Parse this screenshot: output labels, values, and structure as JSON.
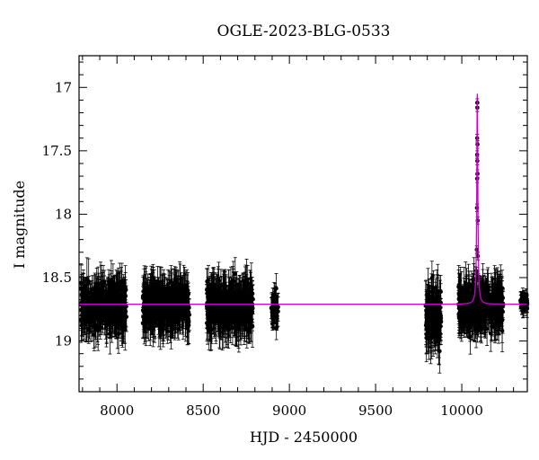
{
  "chart_data": {
    "type": "scatter",
    "title": "OGLE-2023-BLG-0533",
    "xlabel": "HJD - 2450000",
    "ylabel": "I magnitude",
    "xlim": [
      7780,
      10380
    ],
    "ylim": [
      19.4,
      16.75
    ],
    "y_inverted": true,
    "x_ticks": [
      8000,
      8500,
      9000,
      9500,
      10000
    ],
    "y_ticks": [
      17,
      17.5,
      18,
      18.5,
      19
    ],
    "grid": false,
    "colors": {
      "points": "#000000",
      "model": "#cc00cc"
    },
    "baseline_mag": 18.71,
    "observing_seasons": [
      {
        "x_start": 7790,
        "x_end": 8055,
        "mag_center": 18.73,
        "mag_spread": 0.16,
        "error": 0.13
      },
      {
        "x_start": 8150,
        "x_end": 8420,
        "mag_center": 18.72,
        "mag_spread": 0.15,
        "error": 0.13
      },
      {
        "x_start": 8520,
        "x_end": 8790,
        "mag_center": 18.74,
        "mag_spread": 0.16,
        "error": 0.14
      },
      {
        "x_start": 8895,
        "x_end": 8935,
        "mag_center": 18.73,
        "mag_spread": 0.1,
        "error": 0.09
      },
      {
        "x_start": 9790,
        "x_end": 9880,
        "mag_center": 18.8,
        "mag_spread": 0.17,
        "error": 0.16
      },
      {
        "x_start": 9980,
        "x_end": 10240,
        "mag_center": 18.73,
        "mag_spread": 0.15,
        "error": 0.13
      },
      {
        "x_start": 10340,
        "x_end": 10380,
        "mag_center": 18.7,
        "mag_spread": 0.05,
        "error": 0.05
      }
    ],
    "event_points": [
      {
        "x": 10090,
        "y": 17.12
      },
      {
        "x": 10090,
        "y": 17.16
      },
      {
        "x": 10089,
        "y": 17.4
      },
      {
        "x": 10091,
        "y": 17.45
      },
      {
        "x": 10089,
        "y": 17.53
      },
      {
        "x": 10090,
        "y": 17.58
      },
      {
        "x": 10091,
        "y": 17.68
      },
      {
        "x": 10089,
        "y": 17.72
      },
      {
        "x": 10088,
        "y": 17.95
      },
      {
        "x": 10092,
        "y": 18.05
      },
      {
        "x": 10087,
        "y": 18.28
      },
      {
        "x": 10093,
        "y": 18.33
      },
      {
        "x": 10086,
        "y": 18.45
      },
      {
        "x": 10095,
        "y": 18.5
      }
    ],
    "model_peak": {
      "x": 10090,
      "y": 17.05
    }
  }
}
